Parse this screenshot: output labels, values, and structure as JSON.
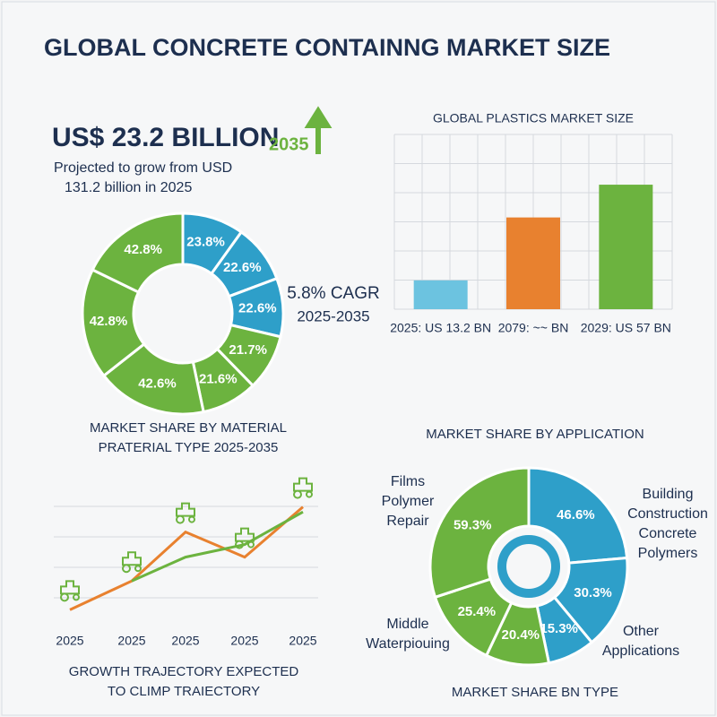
{
  "title": "GLOBAL CONCRETE CONTAINNG MARKET SIZE",
  "headline": "US$ 23.2 BILLION",
  "headline_badge": "2035",
  "subtext": [
    "Projected to grow from USD",
    "131.2 billion in 2025"
  ],
  "cagr": [
    "5.8% CAGR",
    "2025-2035"
  ],
  "chart_data": [
    {
      "type": "pie",
      "donut": true,
      "title": [
        "MARKET SHARE BY MATERIAL",
        "PRATERIAL TYPE 2025-2035"
      ],
      "values": [
        23.8,
        22.6,
        22.6,
        21.7,
        21.6,
        42.6,
        42.8,
        42.8
      ],
      "value_labels": [
        "23.8%",
        "22.6%",
        "22.6%",
        "21.7%",
        "21.6%",
        "42.6%",
        "42.8%",
        "42.8%"
      ],
      "colors": [
        "#2e9fc9",
        "#2e9fc9",
        "#2e9fc9",
        "#6cb33f",
        "#6cb33f",
        "#6cb33f",
        "#6cb33f",
        "#6cb33f"
      ]
    },
    {
      "type": "bar",
      "title": "GLOBAL PLASTICS MARKET SIZE",
      "categories": [
        "2025: US 13.2 BN",
        "2079: ~~ BN",
        "2029: US 57 BN"
      ],
      "values": [
        13.2,
        42,
        57
      ],
      "colors": [
        "#6cc3e0",
        "#e8812f",
        "#6cb33f"
      ],
      "ylim": [
        0,
        80
      ],
      "grid": true
    },
    {
      "type": "line",
      "title": [
        "GROWTH TRAJECTORY EXPECTED",
        "TO CLIMP TRAIECTORY"
      ],
      "categories": [
        "2025",
        "2025",
        "2025",
        "2025",
        "2025"
      ],
      "series": [
        {
          "color": "#e8812f",
          "values": [
            14,
            37,
            76,
            56,
            96
          ]
        },
        {
          "color": "#6cb33f",
          "values": [
            null,
            37,
            56,
            66,
            92
          ]
        }
      ],
      "ylim": [
        0,
        100
      ],
      "grid": true
    },
    {
      "type": "pie",
      "donut": true,
      "title": [
        "MARKET SHARE BY APPLICATION",
        "MARKET SHARE BN TYPE"
      ],
      "values": [
        46.6,
        30.3,
        15.3,
        20.4,
        25.4,
        59.3
      ],
      "value_labels": [
        "46.6%",
        "30.3%",
        "15.3%",
        "20.4%",
        "25.4%",
        "59.3%"
      ],
      "colors": [
        "#2e9fc9",
        "#2e9fc9",
        "#2e9fc9",
        "#6cb33f",
        "#6cb33f",
        "#6cb33f"
      ],
      "annotations": [
        [
          "Films",
          "Polymer",
          "Repair"
        ],
        [
          "Building",
          "Construction",
          "Concrete",
          "Polymers"
        ],
        [
          "Middle",
          "Waterpiouing"
        ],
        [
          "Other",
          "Applications"
        ]
      ]
    }
  ]
}
